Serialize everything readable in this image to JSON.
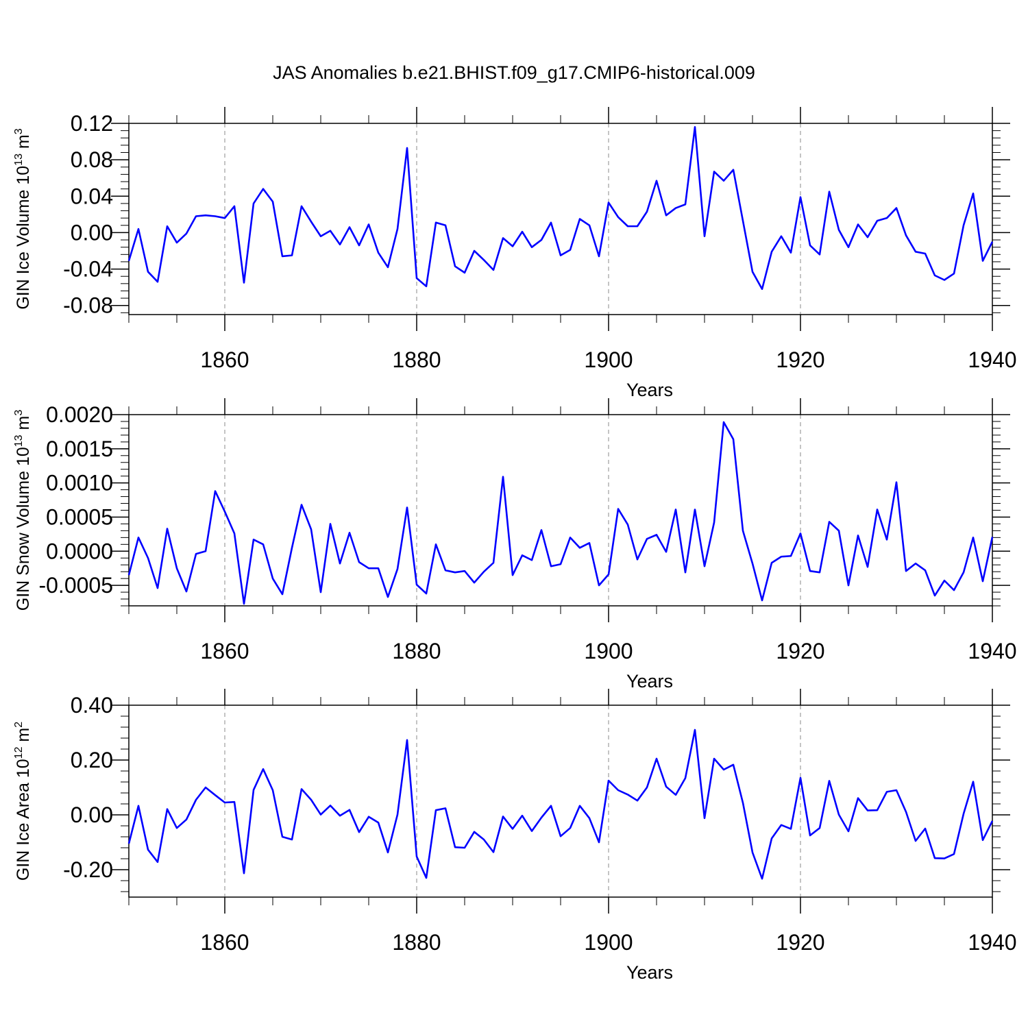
{
  "figure": {
    "title": "JAS Anomalies b.e21.BHIST.f09_g17.CMIP6-historical.009",
    "line_color": "#0000ff"
  },
  "chart_data": [
    {
      "type": "line",
      "title": "JAS Anomalies b.e21.BHIST.f09_g17.CMIP6-historical.009",
      "xlabel": "Years",
      "ylabel": "GIN Ice Volume 10",
      "ylabel_sup1": "13",
      "ylabel_mid": " m",
      "ylabel_sup2": "3",
      "xlim": [
        1850,
        1940
      ],
      "ylim": [
        -0.09,
        0.12
      ],
      "yticks": [
        -0.08,
        -0.04,
        0.0,
        0.04,
        0.08,
        0.12
      ],
      "ytick_labels": [
        "-0.08",
        "-0.04",
        "0.00",
        "0.04",
        "0.08",
        "0.12"
      ],
      "xticks": [
        1860,
        1880,
        1900,
        1920,
        1940
      ],
      "xtick_labels": [
        "1860",
        "1880",
        "1900",
        "1920",
        "1940"
      ],
      "x_start": 1850,
      "values": [
        -0.031,
        0.004,
        -0.043,
        -0.054,
        0.007,
        -0.011,
        -0.001,
        0.018,
        0.019,
        0.018,
        0.016,
        0.029,
        -0.055,
        0.032,
        0.048,
        0.034,
        -0.026,
        -0.025,
        0.029,
        0.012,
        -0.004,
        0.002,
        -0.013,
        0.006,
        -0.014,
        0.009,
        -0.022,
        -0.038,
        0.004,
        0.093,
        -0.05,
        -0.059,
        0.011,
        0.008,
        -0.037,
        -0.044,
        -0.02,
        -0.03,
        -0.041,
        -0.006,
        -0.015,
        0.001,
        -0.016,
        -0.008,
        0.011,
        -0.025,
        -0.019,
        0.015,
        0.008,
        -0.026,
        0.033,
        0.017,
        0.007,
        0.007,
        0.023,
        0.057,
        0.019,
        0.027,
        0.031,
        0.116,
        -0.004,
        0.067,
        0.057,
        0.069,
        0.013,
        -0.043,
        -0.062,
        -0.021,
        -0.004,
        -0.022,
        0.039,
        -0.014,
        -0.024,
        0.045,
        0.003,
        -0.016,
        0.009,
        -0.005,
        0.013,
        0.016,
        0.027,
        -0.003,
        -0.021,
        -0.023,
        -0.047,
        -0.052,
        -0.045,
        0.008,
        0.043,
        -0.031,
        -0.01
      ]
    },
    {
      "type": "line",
      "xlabel": "Years",
      "ylabel": "GIN Snow Volume 10",
      "ylabel_sup1": "13",
      "ylabel_mid": " m",
      "ylabel_sup2": "3",
      "xlim": [
        1850,
        1940
      ],
      "ylim": [
        -0.0008,
        0.002
      ],
      "yticks": [
        -0.0005,
        0.0,
        0.0005,
        0.001,
        0.0015,
        0.002
      ],
      "ytick_labels": [
        "-0.0005",
        "0.0000",
        "0.0005",
        "0.0010",
        "0.0015",
        "0.0020"
      ],
      "xticks": [
        1860,
        1880,
        1900,
        1920,
        1940
      ],
      "xtick_labels": [
        "1860",
        "1880",
        "1900",
        "1920",
        "1940"
      ],
      "x_start": 1850,
      "values": [
        -0.00035,
        0.0002,
        -0.0001,
        -0.00054,
        0.00033,
        -0.00025,
        -0.00059,
        -4e-05,
        0.0,
        0.00088,
        0.00058,
        0.00026,
        -0.00077,
        0.00017,
        0.0001,
        -0.0004,
        -0.00063,
        5e-05,
        0.00068,
        0.00032,
        -0.0006,
        0.0004,
        -0.00018,
        0.00027,
        -0.00016,
        -0.00025,
        -0.00025,
        -0.00067,
        -0.00026,
        0.00064,
        -0.00049,
        -0.00062,
        0.0001,
        -0.00028,
        -0.00031,
        -0.00029,
        -0.00046,
        -0.0003,
        -0.00017,
        0.00109,
        -0.00035,
        -6e-05,
        -0.00013,
        0.00031,
        -0.00022,
        -0.00019,
        0.0002,
        5e-05,
        0.00012,
        -0.0005,
        -0.00034,
        0.00062,
        0.00039,
        -0.00012,
        0.00018,
        0.00024,
        -1e-05,
        0.00061,
        -0.00031,
        0.00061,
        -0.00022,
        0.00042,
        0.00189,
        0.00164,
        0.0003,
        -0.00018,
        -0.00072,
        -0.00017,
        -8e-05,
        -7e-05,
        0.00026,
        -0.00029,
        -0.00031,
        0.00043,
        0.0003,
        -0.0005,
        0.00023,
        -0.00023,
        0.00061,
        0.00017,
        0.00101,
        -0.00029,
        -0.00018,
        -0.00028,
        -0.00065,
        -0.00043,
        -0.00057,
        -0.00031,
        0.0002,
        -0.00044,
        0.00021
      ]
    },
    {
      "type": "line",
      "xlabel": "Years",
      "ylabel": "GIN Ice Area 10",
      "ylabel_sup1": "12",
      "ylabel_mid": " m",
      "ylabel_sup2": "2",
      "xlim": [
        1850,
        1940
      ],
      "ylim": [
        -0.3,
        0.4
      ],
      "yticks": [
        -0.2,
        0.0,
        0.2,
        0.4
      ],
      "ytick_labels": [
        "-0.20",
        "0.00",
        "0.20",
        "0.40"
      ],
      "xticks": [
        1860,
        1880,
        1900,
        1920,
        1940
      ],
      "xtick_labels": [
        "1860",
        "1880",
        "1900",
        "1920",
        "1940"
      ],
      "x_start": 1850,
      "values": [
        -0.105,
        0.033,
        -0.127,
        -0.172,
        0.021,
        -0.048,
        -0.017,
        0.055,
        0.1,
        0.072,
        0.045,
        0.047,
        -0.213,
        0.091,
        0.167,
        0.09,
        -0.08,
        -0.09,
        0.094,
        0.055,
        0.001,
        0.034,
        -0.003,
        0.018,
        -0.063,
        -0.007,
        -0.028,
        -0.137,
        0.001,
        0.273,
        -0.152,
        -0.23,
        0.017,
        0.024,
        -0.118,
        -0.12,
        -0.062,
        -0.09,
        -0.136,
        -0.006,
        -0.051,
        -0.003,
        -0.059,
        -0.01,
        0.033,
        -0.078,
        -0.048,
        0.033,
        -0.012,
        -0.1,
        0.125,
        0.09,
        0.074,
        0.052,
        0.1,
        0.205,
        0.103,
        0.073,
        0.134,
        0.31,
        -0.012,
        0.205,
        0.165,
        0.183,
        0.044,
        -0.137,
        -0.233,
        -0.086,
        -0.037,
        -0.051,
        0.135,
        -0.075,
        -0.048,
        0.124,
        0.001,
        -0.06,
        0.061,
        0.016,
        0.017,
        0.084,
        0.09,
        0.011,
        -0.095,
        -0.05,
        -0.158,
        -0.159,
        -0.143,
        0.004,
        0.121,
        -0.092,
        -0.022
      ]
    }
  ]
}
